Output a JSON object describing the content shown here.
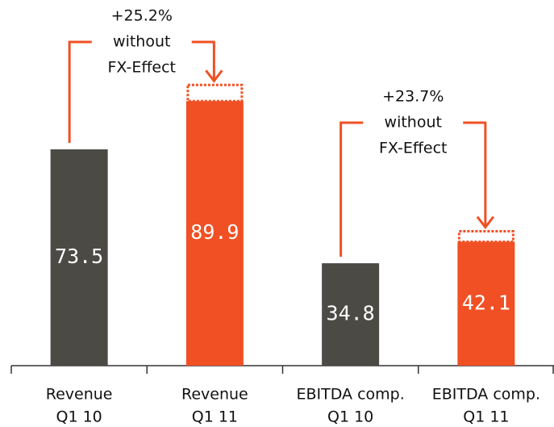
{
  "chart_data": {
    "type": "bar",
    "categories": [
      [
        "Revenue",
        "Q1 10"
      ],
      [
        "Revenue",
        "Q1 11"
      ],
      [
        "EBITDA comp.",
        "Q1 10"
      ],
      [
        "EBITDA comp.",
        "Q1 11"
      ]
    ],
    "values": [
      73.5,
      89.9,
      34.8,
      42.1
    ],
    "colors": [
      "#4b4a45",
      "#f05024",
      "#4b4a45",
      "#f05024"
    ],
    "ylim": [
      0,
      120
    ],
    "annotations": [
      {
        "lines": [
          "+25.2%",
          "without",
          "FX-Effect"
        ],
        "from": 0,
        "to": 1
      },
      {
        "lines": [
          "+23.7%",
          "without",
          "FX-Effect"
        ],
        "from": 2,
        "to": 3
      }
    ]
  }
}
